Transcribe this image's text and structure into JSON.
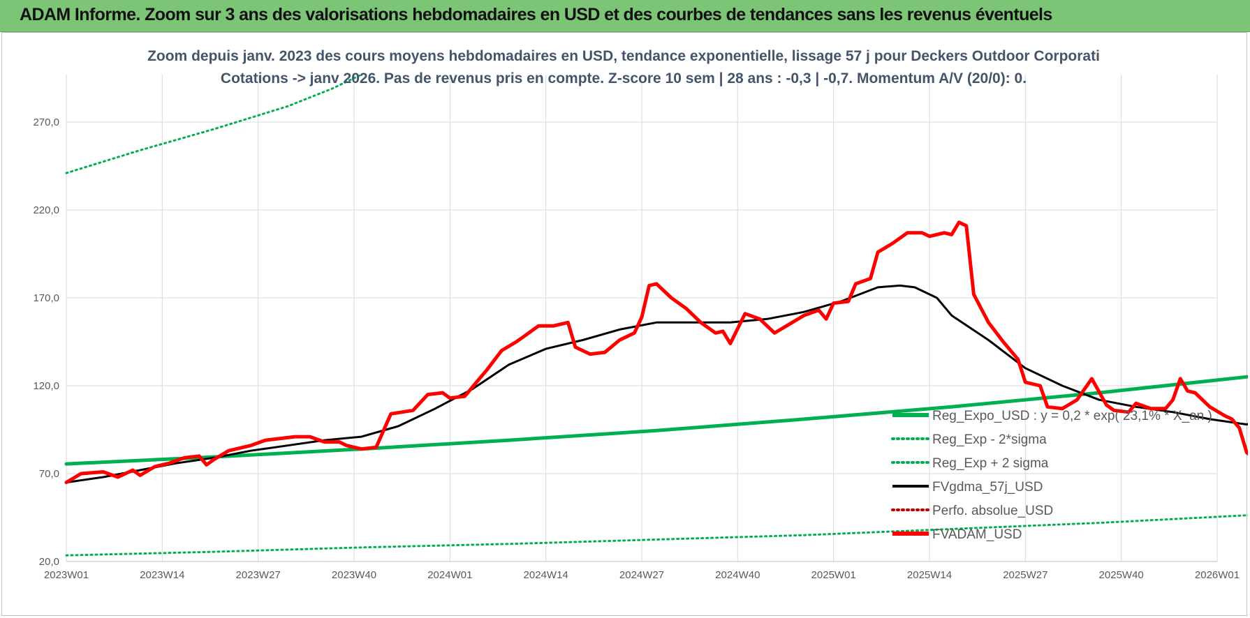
{
  "banner": {
    "title": "ADAM Informe. Zoom sur 3 ans des valorisations hebdomadaires en USD et des courbes de tendances sans les revenus éventuels"
  },
  "chart_data": {
    "type": "line",
    "title": "Zoom depuis janv. 2023 des cours moyens hebdomadaires en USD, tendance exponentielle, lissage 57 j pour Deckers Outdoor Corporati",
    "subtitle": "Cotations -> janv 2026. Pas de revenus pris en compte. Z-score 10 sem | 28 ans : -0,3 | -0,7. Momentum A/V (20/0): 0.",
    "xlabel": "",
    "ylabel": "",
    "x_tick_labels": [
      "2023W01",
      "2023W14",
      "2023W27",
      "2023W40",
      "2024W01",
      "2024W14",
      "2024W27",
      "2024W40",
      "2025W01",
      "2025W14",
      "2025W27",
      "2025W40",
      "2026W01"
    ],
    "x_range_weeks": [
      0,
      161
    ],
    "y_tick_labels": [
      "20,0",
      "70,0",
      "120,0",
      "170,0",
      "220,0",
      "270,0"
    ],
    "y_ticks": [
      20,
      70,
      120,
      170,
      220,
      270
    ],
    "ylim": [
      20,
      297
    ],
    "grid": true,
    "legend_position": "bottom-right",
    "colors": {
      "green": "#00b050",
      "black": "#000000",
      "red": "#ff0000",
      "dotted_red": "#c00000"
    },
    "series": [
      {
        "name": "Reg_Expo_USD : y = 0,2 * exp( 23,1% * X_an )",
        "style": "solid-thick",
        "color": "#00b050",
        "points": [
          [
            0,
            75.5
          ],
          [
            20,
            79.5
          ],
          [
            40,
            84
          ],
          [
            60,
            89
          ],
          [
            80,
            94.5
          ],
          [
            100,
            101
          ],
          [
            120,
            108
          ],
          [
            140,
            116
          ],
          [
            161,
            125.5
          ]
        ]
      },
      {
        "name": "Reg_Exp - 2*sigma",
        "style": "dotted",
        "color": "#00b050",
        "points": [
          [
            0,
            23.5
          ],
          [
            20,
            25.5
          ],
          [
            40,
            28
          ],
          [
            60,
            30
          ],
          [
            80,
            32.5
          ],
          [
            100,
            35
          ],
          [
            120,
            38.5
          ],
          [
            140,
            42
          ],
          [
            161,
            46.5
          ]
        ]
      },
      {
        "name": "Reg_Exp + 2 sigma",
        "style": "dotted",
        "color": "#00b050",
        "points": [
          [
            0,
            241
          ],
          [
            10,
            254
          ],
          [
            20,
            266
          ],
          [
            30,
            279
          ],
          [
            36,
            289
          ],
          [
            40,
            297
          ]
        ]
      },
      {
        "name": "FVgdma_57j_USD",
        "style": "solid",
        "color": "#000000",
        "points": [
          [
            0,
            65
          ],
          [
            5,
            68
          ],
          [
            10,
            72
          ],
          [
            15,
            76
          ],
          [
            20,
            79
          ],
          [
            25,
            83
          ],
          [
            30,
            86
          ],
          [
            35,
            89
          ],
          [
            40,
            91
          ],
          [
            45,
            97
          ],
          [
            50,
            107
          ],
          [
            55,
            118
          ],
          [
            60,
            132
          ],
          [
            65,
            141
          ],
          [
            70,
            146
          ],
          [
            75,
            152
          ],
          [
            80,
            156
          ],
          [
            85,
            156
          ],
          [
            90,
            156
          ],
          [
            95,
            158
          ],
          [
            100,
            162
          ],
          [
            105,
            168
          ],
          [
            110,
            176
          ],
          [
            113,
            177
          ],
          [
            115,
            176
          ],
          [
            118,
            170
          ],
          [
            120,
            160
          ],
          [
            125,
            146
          ],
          [
            130,
            130
          ],
          [
            135,
            120
          ],
          [
            140,
            112
          ],
          [
            145,
            108
          ],
          [
            150,
            105
          ],
          [
            155,
            101
          ],
          [
            160,
            98
          ],
          [
            161,
            99
          ]
        ]
      },
      {
        "name": "Perfo. absolue_USD",
        "style": "dotted",
        "color": "#c00000",
        "points": []
      },
      {
        "name": "FVADAM_USD",
        "style": "solid-thick",
        "color": "#ff0000",
        "points": [
          [
            0,
            65
          ],
          [
            2,
            70
          ],
          [
            5,
            71
          ],
          [
            7,
            68
          ],
          [
            9,
            72
          ],
          [
            10,
            69
          ],
          [
            12,
            74
          ],
          [
            14,
            76
          ],
          [
            16,
            79
          ],
          [
            18,
            80
          ],
          [
            19,
            75
          ],
          [
            20,
            78
          ],
          [
            22,
            83
          ],
          [
            25,
            86
          ],
          [
            27,
            89
          ],
          [
            29,
            90
          ],
          [
            31,
            91
          ],
          [
            33,
            91
          ],
          [
            35,
            88
          ],
          [
            37,
            88
          ],
          [
            38,
            86
          ],
          [
            40,
            84
          ],
          [
            42,
            85
          ],
          [
            44,
            104
          ],
          [
            47,
            106
          ],
          [
            49,
            115
          ],
          [
            51,
            116
          ],
          [
            52,
            113
          ],
          [
            54,
            114
          ],
          [
            56,
            124
          ],
          [
            57,
            129
          ],
          [
            59,
            140
          ],
          [
            61,
            145
          ],
          [
            62,
            148
          ],
          [
            64,
            154
          ],
          [
            66,
            154
          ],
          [
            68,
            156
          ],
          [
            69,
            142
          ],
          [
            71,
            138
          ],
          [
            73,
            139
          ],
          [
            75,
            146
          ],
          [
            77,
            150
          ],
          [
            78,
            159
          ],
          [
            79,
            177
          ],
          [
            80,
            178
          ],
          [
            82,
            170
          ],
          [
            84,
            164
          ],
          [
            86,
            156
          ],
          [
            88,
            150
          ],
          [
            89,
            151
          ],
          [
            90,
            144
          ],
          [
            92,
            161
          ],
          [
            94,
            158
          ],
          [
            96,
            150
          ],
          [
            98,
            155
          ],
          [
            100,
            160
          ],
          [
            102,
            163
          ],
          [
            103,
            158
          ],
          [
            104,
            167
          ],
          [
            106,
            168
          ],
          [
            107,
            178
          ],
          [
            109,
            181
          ],
          [
            110,
            196
          ],
          [
            112,
            201
          ],
          [
            114,
            207
          ],
          [
            116,
            207
          ],
          [
            117,
            205
          ],
          [
            119,
            207
          ],
          [
            120,
            206
          ],
          [
            121,
            213
          ],
          [
            122,
            211
          ],
          [
            123,
            172
          ],
          [
            125,
            156
          ],
          [
            127,
            145
          ],
          [
            129,
            135
          ],
          [
            130,
            122
          ],
          [
            132,
            120
          ],
          [
            133,
            108
          ],
          [
            135,
            107
          ],
          [
            137,
            112
          ],
          [
            139,
            124
          ],
          [
            141,
            109
          ],
          [
            142,
            106
          ],
          [
            144,
            105
          ],
          [
            145,
            110
          ],
          [
            147,
            107
          ],
          [
            149,
            107
          ],
          [
            150,
            112
          ],
          [
            151,
            124
          ],
          [
            152,
            117
          ],
          [
            153,
            116
          ],
          [
            155,
            108
          ],
          [
            157,
            103
          ],
          [
            158,
            101
          ],
          [
            159,
            96
          ],
          [
            160,
            82
          ],
          [
            161,
            79
          ]
        ]
      }
    ]
  }
}
